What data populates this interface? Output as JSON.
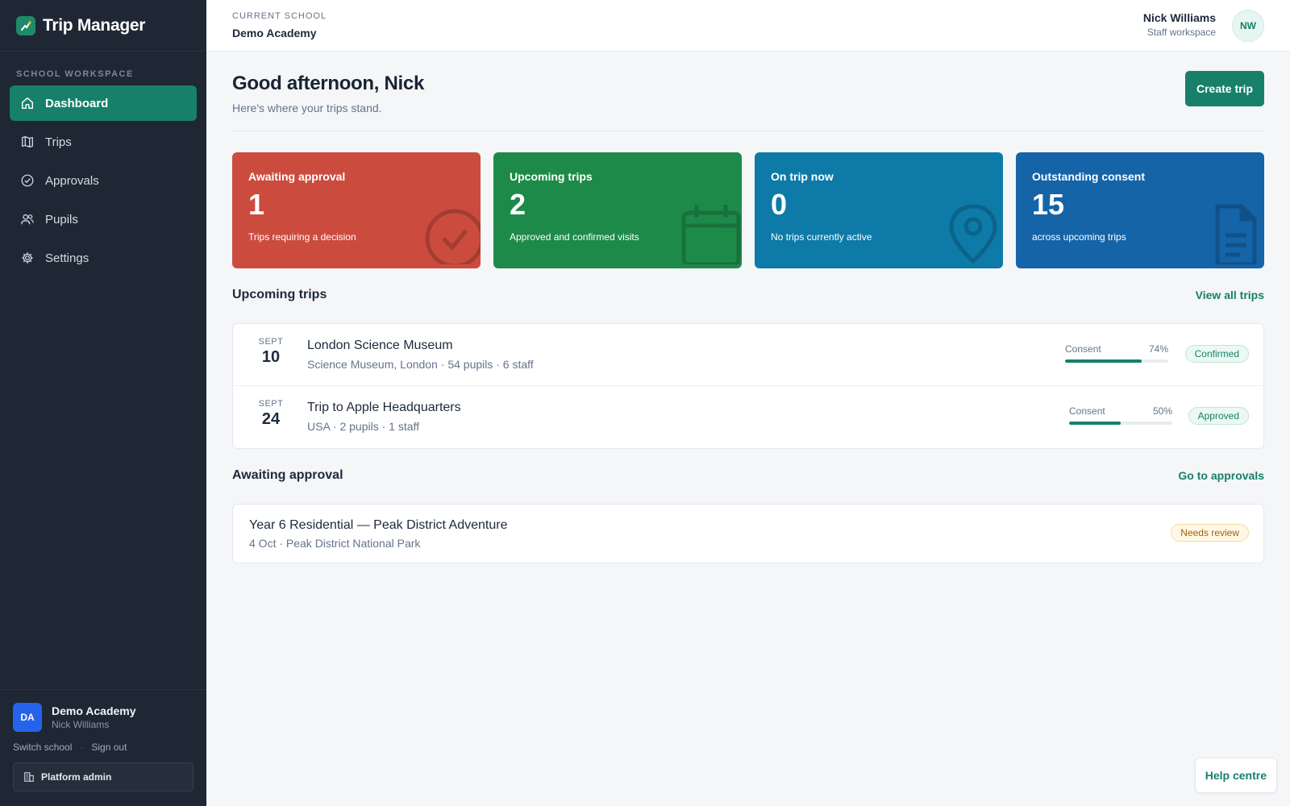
{
  "app": {
    "name": "Trip Manager"
  },
  "colors": {
    "sidebar_bg": "#1e2733",
    "accent": "#17806a",
    "awaiting": "#cc4b3f",
    "upcoming": "#1e8a4a",
    "on_trip": "#0e7aa8",
    "consent": "#1564a8"
  },
  "sidebar": {
    "section_label": "SCHOOL WORKSPACE",
    "items": [
      {
        "label": "Dashboard",
        "icon": "home-icon",
        "active": true
      },
      {
        "label": "Trips",
        "icon": "map-icon",
        "active": false
      },
      {
        "label": "Approvals",
        "icon": "check-circle-icon",
        "active": false
      },
      {
        "label": "Pupils",
        "icon": "users-icon",
        "active": false
      },
      {
        "label": "Settings",
        "icon": "gear-icon",
        "active": false
      }
    ],
    "account": {
      "initials": "DA",
      "name": "Demo Academy",
      "user": "Nick Williams"
    },
    "switch_school": "Switch school",
    "sign_out": "Sign out",
    "platform_admin": "Platform admin"
  },
  "topbar": {
    "school_label": "CURRENT SCHOOL",
    "school_name": "Demo Academy",
    "user_name": "Nick Williams",
    "user_role": "Staff workspace",
    "user_initials": "NW"
  },
  "header": {
    "greeting": "Good afternoon, Nick",
    "subtitle": "Here's where your trips stand.",
    "create_label": "Create trip"
  },
  "stats": [
    {
      "title": "Awaiting approval",
      "value": "1",
      "desc": "Trips requiring a decision",
      "icon": "check-circle-icon"
    },
    {
      "title": "Upcoming trips",
      "value": "2",
      "desc": "Approved and confirmed visits",
      "icon": "calendar-icon"
    },
    {
      "title": "On trip now",
      "value": "0",
      "desc": "No trips currently active",
      "icon": "map-pin-icon"
    },
    {
      "title": "Outstanding consent",
      "value": "15",
      "desc": "across upcoming trips",
      "icon": "document-icon"
    }
  ],
  "upcoming": {
    "title": "Upcoming trips",
    "link": "View all trips",
    "trips": [
      {
        "month": "SEPT",
        "day": "10",
        "name": "London Science Museum",
        "meta": "Science Museum, London · 54 pupils · 6 staff",
        "consent_label": "Consent",
        "consent_pct": "74%",
        "consent": 0.74,
        "status": "Confirmed"
      },
      {
        "month": "SEPT",
        "day": "24",
        "name": "Trip to Apple Headquarters",
        "meta": "USA · 2 pupils · 1 staff",
        "consent_label": "Consent",
        "consent_pct": "50%",
        "consent": 0.5,
        "status": "Approved"
      }
    ]
  },
  "awaiting": {
    "title": "Awaiting approval",
    "link": "Go to approvals",
    "items": [
      {
        "name": "Year 6 Residential — Peak District Adventure",
        "meta": "4 Oct · Peak District National Park",
        "status": "Needs review"
      }
    ]
  },
  "help_label": "Help centre"
}
